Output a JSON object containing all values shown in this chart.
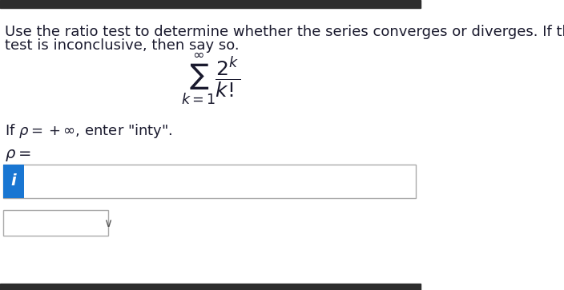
{
  "bg_color": "#ffffff",
  "top_bar_color": "#2d2d2d",
  "bottom_bar_color": "#2d2d2d",
  "text_color": "#1a1a2e",
  "question_line1": "Use the ratio test to determine whether the series converges or diverges. If the",
  "question_line2": "test is inconclusive, then say so.",
  "formula_text": "$\\sum_{k=1}^{\\infty} \\dfrac{2^k}{k!}$",
  "instruction_text": "If $\\rho = +\\infty$, enter \"inty\".",
  "rho_label": "$\\rho =$",
  "input_box_color": "#1976d2",
  "input_box_letter": "i",
  "input_border_color": "#aaaaaa",
  "dropdown_border_color": "#aaaaaa",
  "font_size_question": 13,
  "font_size_formula": 18,
  "font_size_instruction": 13,
  "font_size_rho": 14
}
